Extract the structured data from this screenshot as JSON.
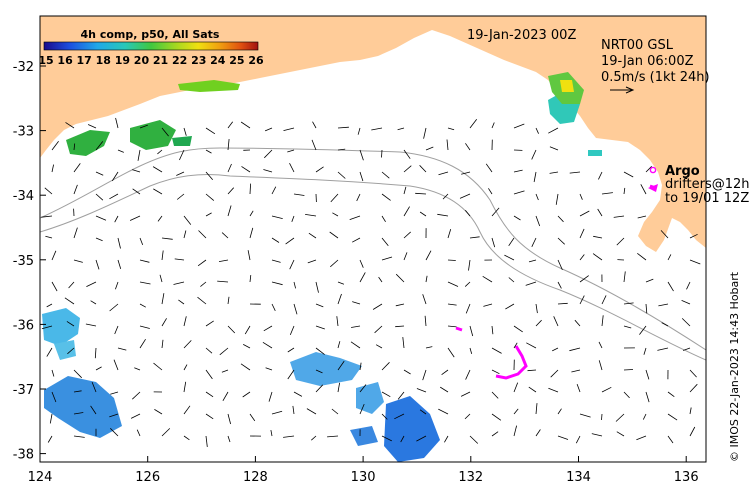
{
  "map": {
    "date_label": "19-Jan-2023 00Z",
    "product_line1": "NRT00 GSL",
    "product_line2": "19-Jan 06:00Z",
    "scale_label": "0.5m/s (1kt 24h)",
    "colorbar_title": "4h comp, p50, All Sats",
    "colorbar_ticks": [
      "15",
      "16",
      "17",
      "18",
      "19",
      "20",
      "21",
      "22",
      "23",
      "24",
      "25",
      "26"
    ],
    "argo_label": "Argo",
    "drifters_line1": "drifters@12h",
    "drifters_line2": "to 19/01 12Z",
    "credit": "© IMOS 22-Jan-2023 14:43 Hobart",
    "x_ticks": [
      "124",
      "126",
      "128",
      "130",
      "132",
      "134",
      "136"
    ],
    "y_ticks": [
      "-32",
      "-33",
      "-34",
      "-35",
      "-36",
      "-37",
      "-38"
    ],
    "land_color": "#ffcc99",
    "argo_color": "#ff00ff"
  }
}
